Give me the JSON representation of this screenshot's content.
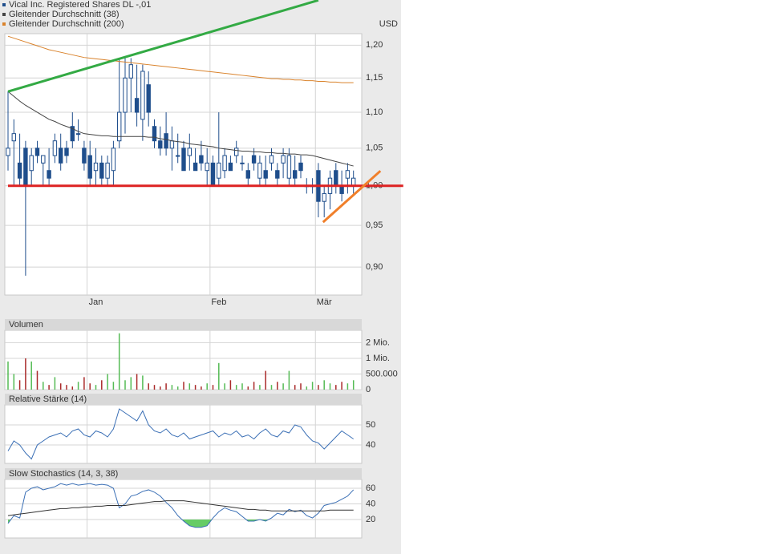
{
  "chart_data": [
    {
      "type": "candlestick",
      "currency": "USD",
      "log_scale": true,
      "grid": true,
      "categories": [
        null,
        null,
        null,
        null,
        null,
        null,
        null,
        null,
        null,
        null,
        null,
        null,
        null,
        null,
        "Jan",
        null,
        null,
        null,
        null,
        null,
        null,
        null,
        null,
        null,
        null,
        null,
        null,
        null,
        null,
        null,
        null,
        null,
        null,
        null,
        null,
        "Feb",
        null,
        null,
        null,
        null,
        null,
        null,
        null,
        null,
        null,
        null,
        null,
        null,
        null,
        null,
        null,
        null,
        null,
        "Mär",
        null,
        null,
        null,
        null,
        null,
        null
      ],
      "series": [
        {
          "name": "Vical Inc. Registered Shares DL -,01",
          "color": "#1f4e8c",
          "ohlc": [
            [
              1.04,
              1.13,
              1.02,
              1.05
            ],
            [
              1.06,
              1.09,
              1.0,
              1.07
            ],
            [
              1.03,
              1.07,
              1.0,
              1.01
            ],
            [
              1.05,
              1.06,
              0.89,
              1.0
            ],
            [
              1.02,
              1.05,
              1.0,
              1.04
            ],
            [
              1.05,
              1.06,
              1.03,
              1.04
            ],
            [
              1.03,
              1.04,
              1.0,
              1.04
            ],
            [
              1.02,
              1.05,
              1.0,
              1.01
            ],
            [
              1.04,
              1.07,
              1.03,
              1.06
            ],
            [
              1.05,
              1.07,
              1.02,
              1.03
            ],
            [
              1.05,
              1.06,
              1.03,
              1.04
            ],
            [
              1.08,
              1.1,
              1.05,
              1.06
            ],
            [
              1.07,
              1.09,
              1.06,
              1.07
            ],
            [
              1.05,
              1.06,
              1.02,
              1.03
            ],
            [
              1.04,
              1.06,
              1.0,
              1.01
            ],
            [
              1.02,
              1.05,
              1.0,
              1.03
            ],
            [
              1.03,
              1.04,
              1.0,
              1.01
            ],
            [
              1.01,
              1.04,
              1.0,
              1.03
            ],
            [
              1.02,
              1.06,
              1.0,
              1.05
            ],
            [
              1.06,
              1.18,
              1.05,
              1.1
            ],
            [
              1.1,
              1.18,
              1.07,
              1.15
            ],
            [
              1.15,
              1.18,
              1.1,
              1.17
            ],
            [
              1.12,
              1.17,
              1.08,
              1.1
            ],
            [
              1.09,
              1.17,
              1.06,
              1.16
            ],
            [
              1.14,
              1.16,
              1.08,
              1.1
            ],
            [
              1.08,
              1.09,
              1.05,
              1.06
            ],
            [
              1.06,
              1.08,
              1.04,
              1.05
            ],
            [
              1.07,
              1.1,
              1.04,
              1.05
            ],
            [
              1.05,
              1.08,
              1.02,
              1.06
            ],
            [
              1.04,
              1.07,
              1.03,
              1.04
            ],
            [
              1.05,
              1.06,
              1.02,
              1.02
            ],
            [
              1.04,
              1.07,
              1.02,
              1.05
            ],
            [
              1.03,
              1.05,
              1.02,
              1.02
            ],
            [
              1.04,
              1.06,
              1.02,
              1.03
            ],
            [
              1.02,
              1.05,
              1.0,
              1.03
            ],
            [
              1.03,
              1.04,
              1.0,
              1.0
            ],
            [
              1.01,
              1.1,
              1.0,
              1.03
            ],
            [
              1.02,
              1.05,
              1.01,
              1.04
            ],
            [
              1.03,
              1.04,
              1.02,
              1.02
            ],
            [
              1.04,
              1.06,
              1.03,
              1.05
            ],
            [
              1.03,
              1.04,
              1.02,
              1.03
            ],
            [
              1.02,
              1.03,
              1.0,
              1.01
            ],
            [
              1.04,
              1.05,
              1.02,
              1.03
            ],
            [
              1.01,
              1.04,
              1.0,
              1.03
            ],
            [
              1.02,
              1.04,
              1.0,
              1.01
            ],
            [
              1.03,
              1.05,
              1.02,
              1.04
            ],
            [
              1.02,
              1.03,
              1.0,
              1.01
            ],
            [
              1.03,
              1.05,
              1.01,
              1.04
            ],
            [
              1.01,
              1.05,
              1.0,
              1.04
            ],
            [
              1.02,
              1.04,
              1.0,
              1.01
            ],
            [
              1.03,
              1.04,
              1.01,
              1.02
            ],
            [
              1.0,
              1.01,
              0.99,
              1.0
            ],
            [
              1.0,
              1.01,
              0.99,
              1.0
            ],
            [
              1.02,
              1.03,
              0.96,
              0.98
            ],
            [
              0.98,
              1.0,
              0.96,
              0.99
            ],
            [
              0.99,
              1.02,
              0.97,
              1.01
            ],
            [
              1.02,
              1.03,
              0.99,
              1.0
            ],
            [
              1.0,
              1.02,
              0.98,
              0.99
            ],
            [
              1.01,
              1.03,
              0.99,
              1.02
            ],
            [
              1.0,
              1.02,
              0.99,
              1.01
            ]
          ]
        },
        {
          "name": "Gleitender Durchschnitt (38)",
          "color": "#444444",
          "values": [
            1.13,
            1.123,
            1.116,
            1.11,
            1.105,
            1.1,
            1.095,
            1.09,
            1.087,
            1.083,
            1.08,
            1.077,
            1.073,
            1.07,
            1.069,
            1.068,
            1.067,
            1.067,
            1.066,
            1.066,
            1.066,
            1.066,
            1.066,
            1.066,
            1.065,
            1.065,
            1.063,
            1.062,
            1.06,
            1.059,
            1.058,
            1.056,
            1.055,
            1.054,
            1.053,
            1.052,
            1.05,
            1.049,
            1.048,
            1.047,
            1.046,
            1.046,
            1.045,
            1.045,
            1.044,
            1.044,
            1.043,
            1.043,
            1.042,
            1.042,
            1.041,
            1.041,
            1.04,
            1.038,
            1.036,
            1.034,
            1.032,
            1.03,
            1.028,
            1.026
          ]
        },
        {
          "name": "Gleitender Durchschnitt (200)",
          "color": "#d9822b",
          "values": [
            1.214,
            1.211,
            1.208,
            1.205,
            1.202,
            1.199,
            1.196,
            1.193,
            1.191,
            1.189,
            1.187,
            1.185,
            1.183,
            1.181,
            1.18,
            1.179,
            1.178,
            1.177,
            1.176,
            1.175,
            1.174,
            1.173,
            1.172,
            1.171,
            1.17,
            1.169,
            1.168,
            1.167,
            1.166,
            1.165,
            1.164,
            1.163,
            1.162,
            1.161,
            1.16,
            1.159,
            1.158,
            1.157,
            1.156,
            1.155,
            1.154,
            1.153,
            1.152,
            1.151,
            1.15,
            1.149,
            1.149,
            1.148,
            1.148,
            1.147,
            1.147,
            1.146,
            1.146,
            1.145,
            1.145,
            1.144,
            1.144,
            1.143,
            1.143,
            1.143
          ]
        }
      ],
      "trend_lines": [
        {
          "color": "#33aa44",
          "x": [
            0,
            53
          ],
          "y": [
            1.13,
            1.272
          ]
        },
        {
          "color": "#dd2222",
          "x": [
            0,
            67.5
          ],
          "y": [
            1.0,
            1.0
          ]
        },
        {
          "color": "#f07f2a",
          "x": [
            53.8,
            63.6
          ],
          "y": [
            0.954,
            1.0195
          ]
        }
      ],
      "ylim": [
        0.868,
        1.218
      ],
      "yticks": [
        {
          "value": 0.9,
          "label": "0,90"
        },
        {
          "value": 0.95,
          "label": "0,95"
        },
        {
          "value": 1.0,
          "label": "1,00"
        },
        {
          "value": 1.05,
          "label": "1,05"
        },
        {
          "value": 1.1,
          "label": "1,10"
        },
        {
          "value": 1.15,
          "label": "1,15"
        },
        {
          "value": 1.2,
          "label": "1,20"
        }
      ]
    },
    {
      "type": "bar",
      "title": "Volumen",
      "up_color": "#55bb55",
      "down_color": "#aa2a2a",
      "yscale": "tick-spaced",
      "values": [
        900000,
        500000,
        300000,
        1000000,
        900000,
        600000,
        250000,
        150000,
        400000,
        200000,
        150000,
        100000,
        250000,
        400000,
        200000,
        150000,
        300000,
        500000,
        250000,
        2600000,
        300000,
        400000,
        500000,
        450000,
        200000,
        150000,
        100000,
        200000,
        150000,
        100000,
        250000,
        200000,
        150000,
        100000,
        200000,
        150000,
        850000,
        200000,
        300000,
        150000,
        200000,
        100000,
        250000,
        150000,
        600000,
        150000,
        250000,
        200000,
        600000,
        150000,
        200000,
        100000,
        250000,
        150000,
        300000,
        200000,
        150000,
        250000,
        200000,
        300000
      ],
      "ylim": [
        0,
        2790000
      ],
      "yticks": [
        0,
        {
          "value": 500000,
          "label": "500.000"
        },
        {
          "value": 1000000,
          "label": "1 Mio."
        },
        {
          "value": 2000000,
          "label": "2 Mio."
        }
      ]
    },
    {
      "type": "line",
      "title": "Relative Stärke (14)",
      "series": [
        {
          "color": "#3a6fb5",
          "values": [
            37,
            42,
            40,
            36,
            33,
            40,
            42,
            44,
            45,
            46,
            44,
            47,
            48,
            45,
            44,
            47,
            46,
            44,
            48,
            58,
            56,
            54,
            52,
            57,
            50,
            47,
            46,
            48,
            45,
            44,
            46,
            43,
            44,
            45,
            46,
            47,
            44,
            46,
            45,
            47,
            44,
            45,
            43,
            46,
            48,
            45,
            44,
            47,
            46,
            50,
            49,
            45,
            42,
            41,
            38,
            41,
            44,
            47,
            45,
            43
          ]
        }
      ],
      "ylim": [
        30.8,
        60
      ],
      "yticks": [
        40,
        50
      ]
    },
    {
      "type": "line",
      "title": "Slow Stochastics (14, 3, 38)",
      "series": [
        {
          "color": "#3a6fb5",
          "fill_below": 20,
          "fill_color": "#66cc66",
          "values": [
            15,
            25,
            22,
            55,
            60,
            62,
            58,
            60,
            62,
            66,
            64,
            66,
            64,
            65,
            66,
            64,
            65,
            64,
            60,
            35,
            40,
            50,
            52,
            56,
            58,
            55,
            50,
            42,
            35,
            25,
            18,
            12,
            10,
            10,
            12,
            22,
            30,
            35,
            32,
            30,
            24,
            18,
            18,
            20,
            18,
            22,
            28,
            26,
            33,
            30,
            32,
            25,
            22,
            28,
            38,
            40,
            42,
            46,
            50,
            58
          ]
        },
        {
          "color": "#333333",
          "values": [
            25,
            26,
            27,
            28,
            29,
            30,
            31,
            32,
            33,
            34,
            34,
            35,
            35,
            36,
            36,
            37,
            37,
            38,
            38,
            38,
            38,
            39,
            40,
            41,
            42,
            43,
            43,
            44,
            44,
            44,
            44,
            43,
            42,
            41,
            40,
            39,
            38,
            37,
            36,
            35,
            34,
            33,
            33,
            32,
            32,
            31,
            31,
            31,
            31,
            31,
            31,
            31,
            31,
            31,
            31,
            32,
            32,
            32,
            32,
            32
          ]
        }
      ],
      "ylim": [
        -3.6,
        71.3
      ],
      "yticks": [
        20,
        40,
        60
      ]
    }
  ]
}
